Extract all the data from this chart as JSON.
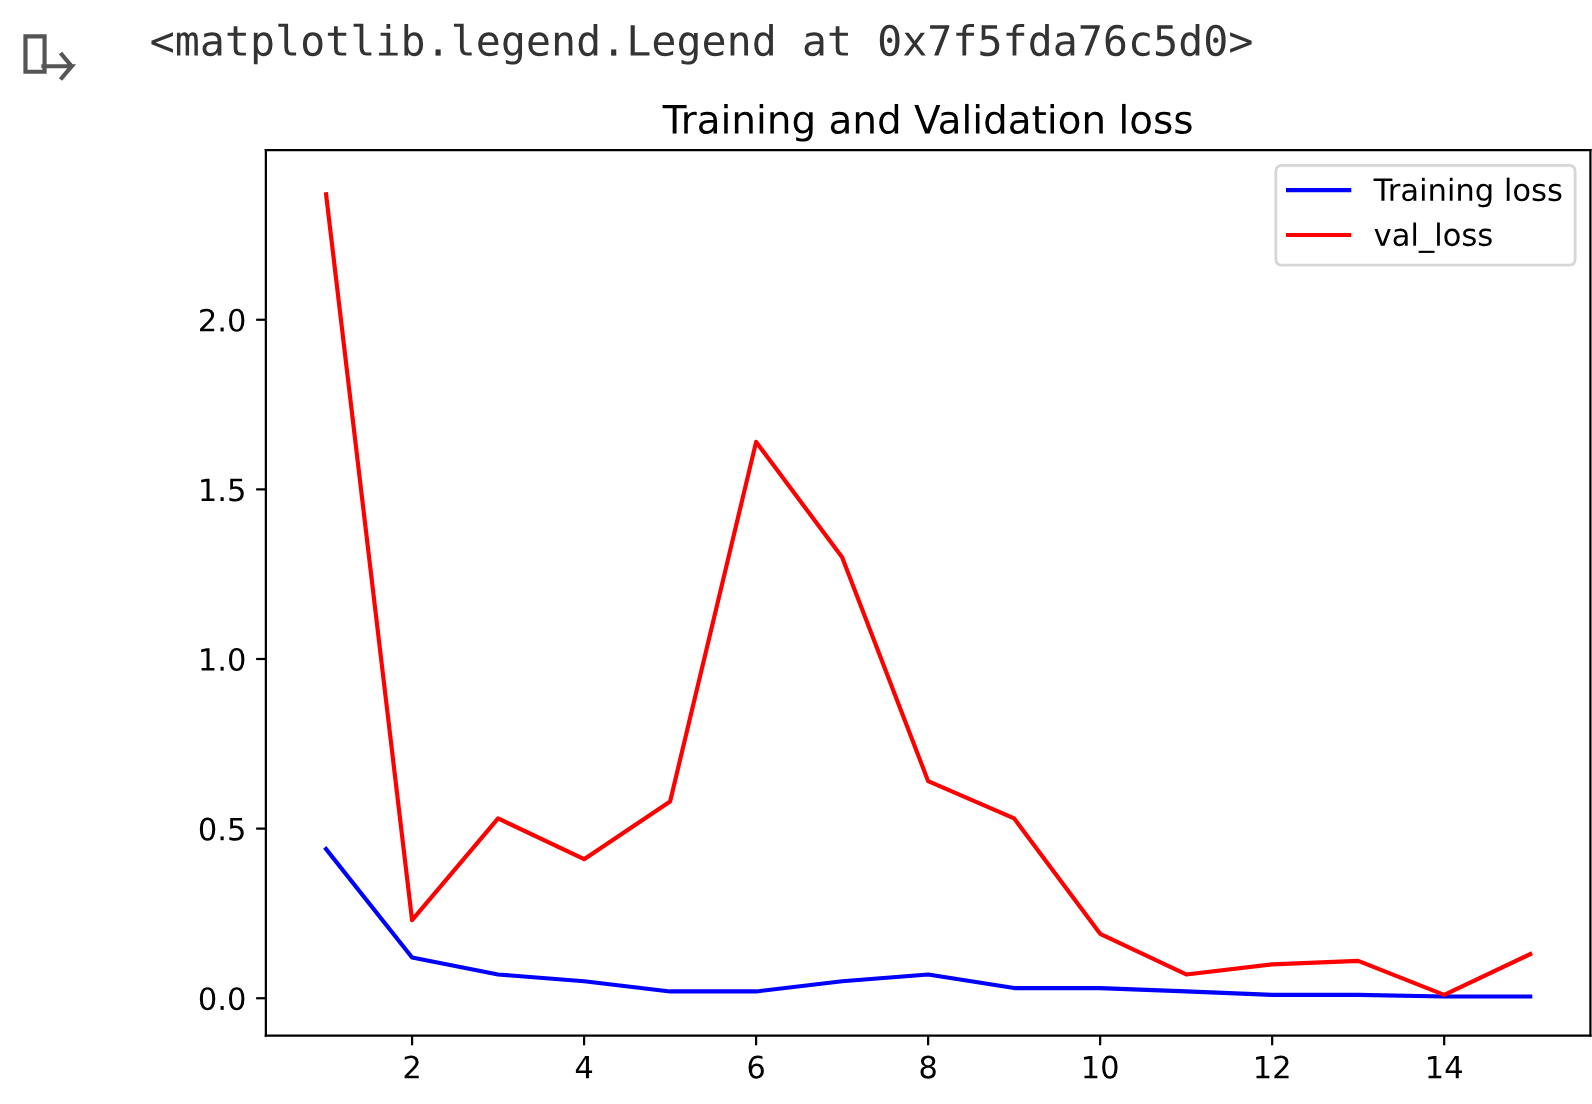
{
  "chart_data": {
    "type": "line",
    "title": "Training and Validation loss",
    "annotations": [
      "<matplotlib.legend.Legend at 0x7f5fda76c5d0>"
    ],
    "x": [
      1,
      2,
      3,
      4,
      5,
      6,
      7,
      8,
      9,
      10,
      11,
      12,
      13,
      14,
      15
    ],
    "series": [
      {
        "name": "Training loss",
        "color": "#0000ff",
        "values": [
          0.44,
          0.12,
          0.07,
          0.05,
          0.02,
          0.02,
          0.05,
          0.07,
          0.03,
          0.03,
          0.02,
          0.01,
          0.01,
          0.005,
          0.005
        ]
      },
      {
        "name": "val_loss",
        "color": "#ff0000",
        "values": [
          2.37,
          0.23,
          0.53,
          0.41,
          0.58,
          1.64,
          1.3,
          0.64,
          0.53,
          0.19,
          0.07,
          0.1,
          0.11,
          0.01,
          0.13
        ]
      }
    ],
    "xlim": [
      0.3,
      15.7
    ],
    "xticks": [
      2,
      4,
      6,
      8,
      10,
      12,
      14
    ],
    "ylim": [
      -0.11,
      2.5
    ],
    "yticks": [
      {
        "value": 0,
        "label": "0.0"
      },
      {
        "value": 0.5,
        "label": "0.5"
      },
      {
        "value": 1,
        "label": "1.0"
      },
      {
        "value": 1.5,
        "label": "1.5"
      },
      {
        "value": 2,
        "label": "2.0"
      }
    ],
    "legend": "top right",
    "grid": false,
    "marker": "none",
    "line_style": "solid"
  }
}
